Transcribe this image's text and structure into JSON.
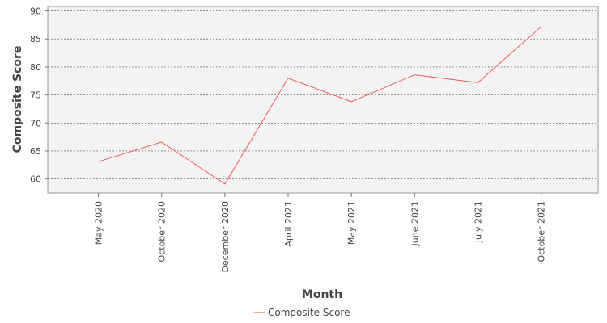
{
  "chart_data": {
    "type": "line",
    "title": "",
    "xlabel": "Month",
    "ylabel": "Composite Score",
    "categories": [
      "May 2020",
      "October 2020",
      "December 2020",
      "April 2021",
      "May 2021",
      "June 2021",
      "July 2021",
      "October 2021"
    ],
    "series": [
      {
        "name": "Composite Score",
        "color": "#f25a5a",
        "values": [
          63.1,
          66.6,
          59.1,
          78.0,
          73.8,
          78.6,
          77.2,
          87.2
        ]
      }
    ],
    "yticks": [
      60,
      65,
      70,
      75,
      80,
      85,
      90
    ],
    "ylim": [
      57.5,
      90.8
    ],
    "grid": true,
    "legend": "bottom-center"
  }
}
